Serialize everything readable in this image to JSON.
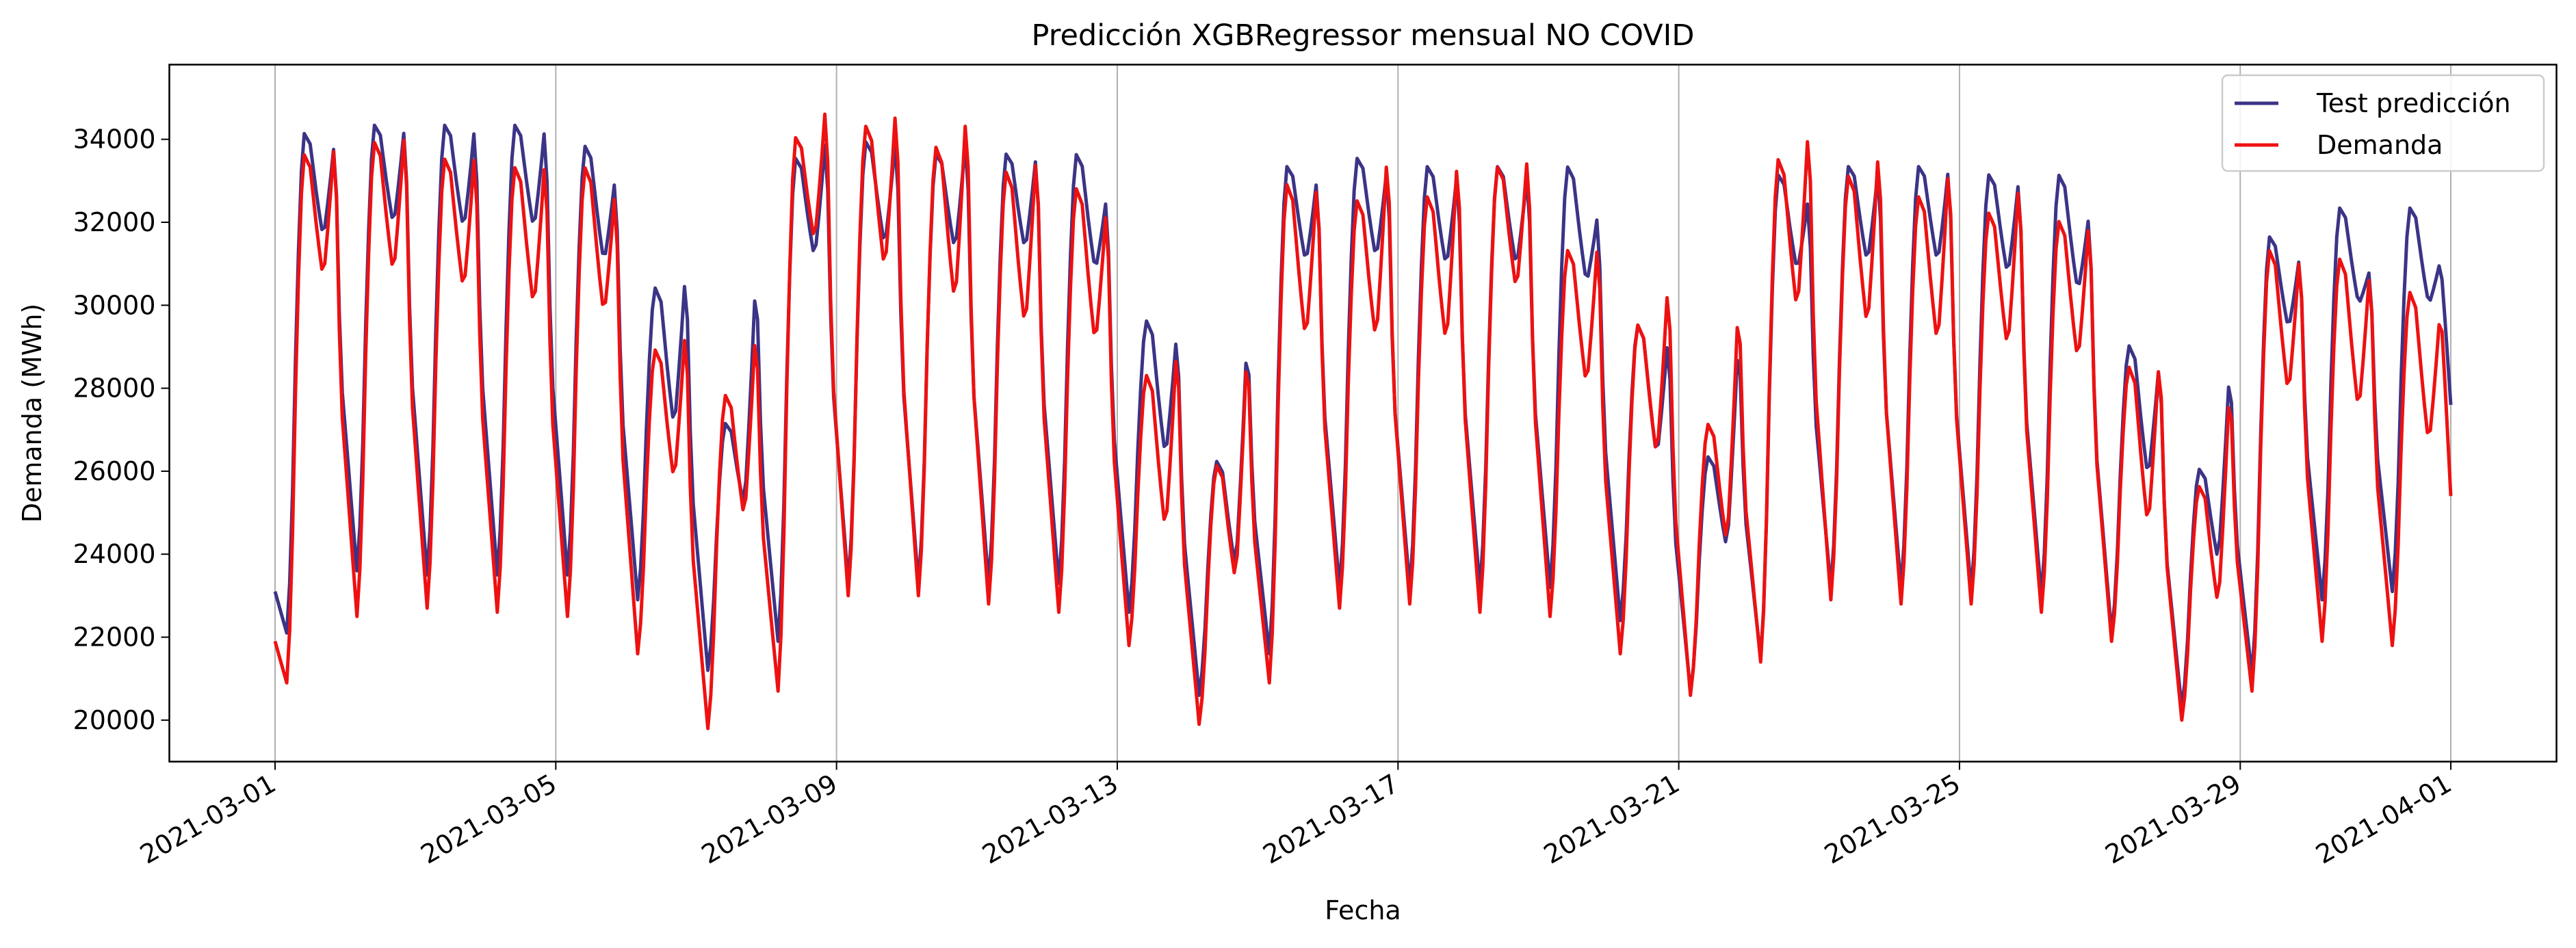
{
  "chart_data": {
    "type": "line",
    "title": "Predicción XGBRegressor mensual NO COVID",
    "xlabel": "Fecha",
    "ylabel": "Demanda (MWh)",
    "x_range": [
      "2021-03-01 00:00",
      "2021-04-01 00:00"
    ],
    "ylim": [
      19000,
      35800
    ],
    "x_ticks": [
      "2021-03-01",
      "2021-03-05",
      "2021-03-09",
      "2021-03-13",
      "2021-03-17",
      "2021-03-21",
      "2021-03-25",
      "2021-03-29",
      "2021-04-01"
    ],
    "y_ticks": [
      20000,
      22000,
      24000,
      26000,
      28000,
      30000,
      32000,
      34000
    ],
    "grid": "x",
    "legend": "top-right",
    "sampling": "hourly, 2021-03-01 00:00 to 2021-04-01 00:00",
    "series": [
      {
        "name": "Test predicción",
        "color": "#3b3486",
        "daily": [
          {
            "date": "2021-03-01",
            "min": 22100,
            "morning": 34200,
            "midday": 31600,
            "evening": 34100
          },
          {
            "date": "2021-03-02",
            "min": 23600,
            "morning": 34400,
            "midday": 31900,
            "evening": 34500
          },
          {
            "date": "2021-03-03",
            "min": 23500,
            "morning": 34400,
            "midday": 31800,
            "evening": 34500
          },
          {
            "date": "2021-03-04",
            "min": 23500,
            "morning": 34400,
            "midday": 31800,
            "evening": 34500
          },
          {
            "date": "2021-03-05",
            "min": 23500,
            "morning": 33900,
            "midday": 31000,
            "evening": 33200
          },
          {
            "date": "2021-03-06",
            "min": 22900,
            "morning": 30500,
            "midday": 27000,
            "evening": 31000
          },
          {
            "date": "2021-03-07",
            "min": 21200,
            "morning": 27200,
            "midday": 25100,
            "evening": 30900
          },
          {
            "date": "2021-03-08",
            "min": 21900,
            "morning": 33600,
            "midday": 31100,
            "evening": 34300
          },
          {
            "date": "2021-03-09",
            "min": 23300,
            "morning": 34000,
            "midday": 31400,
            "evening": 34300
          },
          {
            "date": "2021-03-10",
            "min": 23300,
            "morning": 33700,
            "midday": 31300,
            "evening": 34300
          },
          {
            "date": "2021-03-11",
            "min": 23300,
            "morning": 33700,
            "midday": 31300,
            "evening": 33800
          },
          {
            "date": "2021-03-12",
            "min": 23300,
            "morning": 33700,
            "midday": 30800,
            "evening": 32700
          },
          {
            "date": "2021-03-13",
            "min": 22600,
            "morning": 29700,
            "midday": 26300,
            "evening": 29500
          },
          {
            "date": "2021-03-14",
            "min": 20600,
            "morning": 26300,
            "midday": 23600,
            "evening": 29400
          },
          {
            "date": "2021-03-15",
            "min": 21600,
            "morning": 33400,
            "midday": 31000,
            "evening": 33200
          },
          {
            "date": "2021-03-16",
            "min": 23200,
            "morning": 33600,
            "midday": 31100,
            "evening": 33500
          },
          {
            "date": "2021-03-17",
            "min": 23200,
            "morning": 33400,
            "midday": 30900,
            "evening": 33400
          },
          {
            "date": "2021-03-18",
            "min": 23200,
            "morning": 33400,
            "midday": 30900,
            "evening": 33400
          },
          {
            "date": "2021-03-19",
            "min": 23200,
            "morning": 33400,
            "midday": 30500,
            "evening": 32300
          },
          {
            "date": "2021-03-20",
            "min": 22400,
            "morning": 29600,
            "midday": 26300,
            "evening": 29400
          },
          {
            "date": "2021-03-21",
            "min": 20700,
            "morning": 26400,
            "midday": 24100,
            "evening": 29400
          },
          {
            "date": "2021-03-22",
            "min": 21500,
            "morning": 33200,
            "midday": 30800,
            "evening": 32700
          },
          {
            "date": "2021-03-23",
            "min": 23200,
            "morning": 33400,
            "midday": 31000,
            "evening": 33500
          },
          {
            "date": "2021-03-24",
            "min": 23200,
            "morning": 33400,
            "midday": 31000,
            "evening": 33500
          },
          {
            "date": "2021-03-25",
            "min": 23100,
            "morning": 33200,
            "midday": 30700,
            "evening": 33200
          },
          {
            "date": "2021-03-26",
            "min": 23000,
            "morning": 33200,
            "midday": 30300,
            "evening": 32300
          },
          {
            "date": "2021-03-27",
            "min": 22100,
            "morning": 29100,
            "midday": 25800,
            "evening": 28800
          },
          {
            "date": "2021-03-28",
            "min": 20300,
            "morning": 26100,
            "midday": 23800,
            "evening": 28700
          },
          {
            "date": "2021-03-29",
            "min": 21100,
            "morning": 31700,
            "midday": 29400,
            "evening": 31300
          },
          {
            "date": "2021-03-30",
            "min": 22900,
            "morning": 32400,
            "midday": 30000,
            "evening": 30900
          },
          {
            "date": "2021-03-31",
            "min": 23100,
            "morning": 32400,
            "midday": 30000,
            "evening": 31100
          }
        ],
        "end_value": 27600
      },
      {
        "name": "Demanda",
        "color": "#ee1111",
        "daily": [
          {
            "date": "2021-03-01",
            "min": 20900,
            "morning": 33700,
            "midday": 30600,
            "evening": 34200
          },
          {
            "date": "2021-03-02",
            "min": 22500,
            "morning": 34000,
            "midday": 30700,
            "evening": 34500
          },
          {
            "date": "2021-03-03",
            "min": 22700,
            "morning": 33600,
            "midday": 30300,
            "evening": 34000
          },
          {
            "date": "2021-03-04",
            "min": 22600,
            "morning": 33400,
            "midday": 29900,
            "evening": 33800
          },
          {
            "date": "2021-03-05",
            "min": 22500,
            "morning": 33400,
            "midday": 29700,
            "evening": 33000
          },
          {
            "date": "2021-03-06",
            "min": 21600,
            "morning": 29000,
            "midday": 25700,
            "evening": 29700
          },
          {
            "date": "2021-03-07",
            "min": 19800,
            "morning": 27900,
            "midday": 24800,
            "evening": 29700
          },
          {
            "date": "2021-03-08",
            "min": 20700,
            "morning": 34100,
            "midday": 31500,
            "evening": 35100
          },
          {
            "date": "2021-03-09",
            "min": 23000,
            "morning": 34400,
            "midday": 30800,
            "evening": 35100
          },
          {
            "date": "2021-03-10",
            "min": 23000,
            "morning": 33900,
            "midday": 30000,
            "evening": 35000
          },
          {
            "date": "2021-03-11",
            "min": 22800,
            "morning": 33300,
            "midday": 29400,
            "evening": 34000
          },
          {
            "date": "2021-03-12",
            "min": 22600,
            "morning": 32900,
            "midday": 29000,
            "evening": 32600
          },
          {
            "date": "2021-03-13",
            "min": 21800,
            "morning": 28400,
            "midday": 24500,
            "evening": 29300
          },
          {
            "date": "2021-03-14",
            "min": 19900,
            "morning": 26200,
            "midday": 23300,
            "evening": 29200
          },
          {
            "date": "2021-03-15",
            "min": 20900,
            "morning": 33000,
            "midday": 29100,
            "evening": 33300
          },
          {
            "date": "2021-03-16",
            "min": 22700,
            "morning": 32600,
            "midday": 29100,
            "evening": 34000
          },
          {
            "date": "2021-03-17",
            "min": 22800,
            "morning": 32700,
            "midday": 29000,
            "evening": 33900
          },
          {
            "date": "2021-03-18",
            "min": 22600,
            "morning": 33400,
            "midday": 30300,
            "evening": 33900
          },
          {
            "date": "2021-03-19",
            "min": 22500,
            "morning": 31400,
            "midday": 28000,
            "evening": 31800
          },
          {
            "date": "2021-03-20",
            "min": 21600,
            "morning": 29600,
            "midday": 26300,
            "evening": 30800
          },
          {
            "date": "2021-03-21",
            "min": 20600,
            "morning": 27200,
            "midday": 24200,
            "evening": 30300
          },
          {
            "date": "2021-03-22",
            "min": 21400,
            "morning": 33600,
            "midday": 29800,
            "evening": 34600
          },
          {
            "date": "2021-03-23",
            "min": 22900,
            "morning": 33200,
            "midday": 29400,
            "evening": 34100
          },
          {
            "date": "2021-03-24",
            "min": 22800,
            "morning": 32700,
            "midday": 29000,
            "evening": 33700
          },
          {
            "date": "2021-03-25",
            "min": 22800,
            "morning": 32300,
            "midday": 28900,
            "evening": 33300
          },
          {
            "date": "2021-03-26",
            "min": 22600,
            "morning": 32100,
            "midday": 28600,
            "evening": 32300
          },
          {
            "date": "2021-03-27",
            "min": 21900,
            "morning": 28600,
            "midday": 24600,
            "evening": 29000
          },
          {
            "date": "2021-03-28",
            "min": 20000,
            "morning": 25700,
            "midday": 22700,
            "evening": 28300
          },
          {
            "date": "2021-03-29",
            "min": 20700,
            "morning": 31400,
            "midday": 27800,
            "evening": 31500
          },
          {
            "date": "2021-03-30",
            "min": 21900,
            "morning": 31200,
            "midday": 27400,
            "evening": 31100
          },
          {
            "date": "2021-03-31",
            "min": 21800,
            "morning": 30400,
            "midday": 26600,
            "evening": 30000
          }
        ],
        "end_value": 25400
      }
    ]
  }
}
